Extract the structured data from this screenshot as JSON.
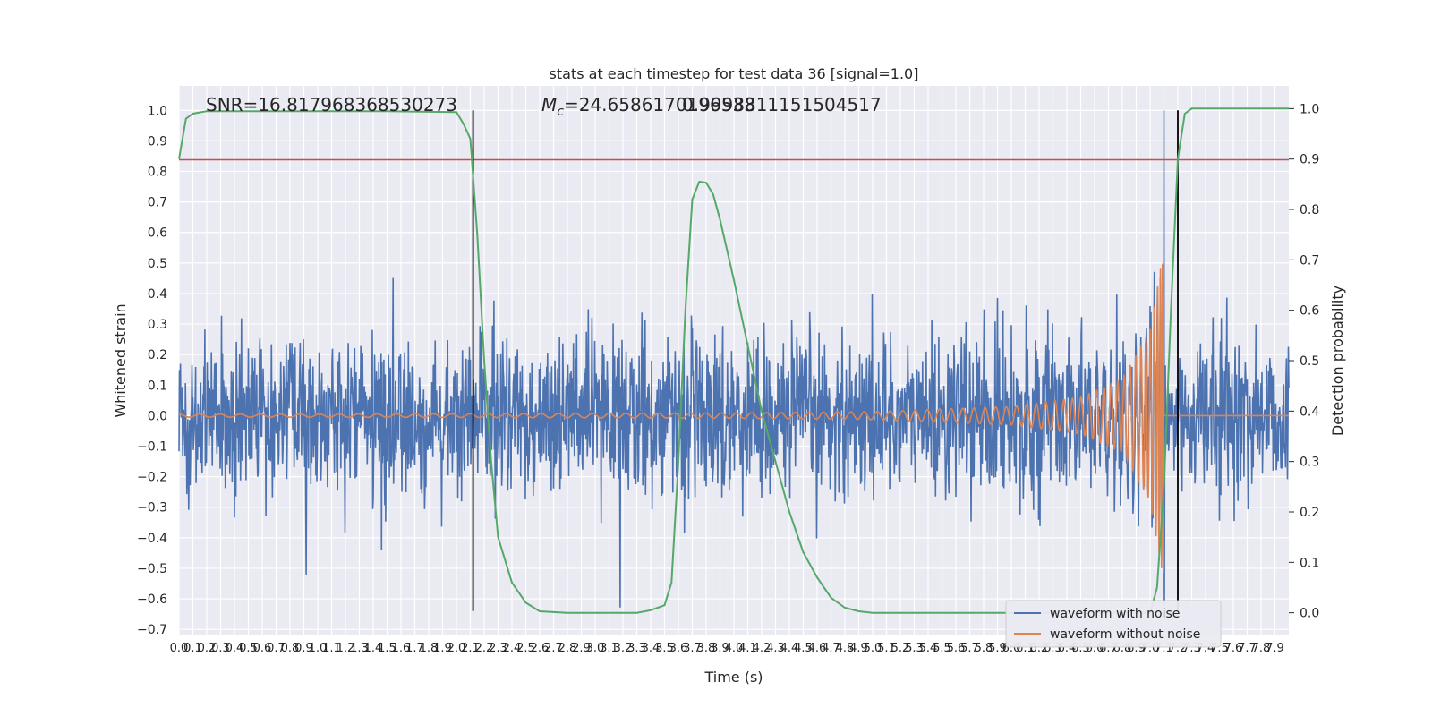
{
  "chart_data": {
    "type": "line",
    "title": "stats at each timestep for test data 36 [signal=1.0]",
    "xlabel": "Time (s)",
    "ylabel": "Whitened strain",
    "ylabel_right": "Detection probability",
    "xlim": [
      0.0,
      8.0
    ],
    "ylim": [
      -0.72,
      1.08
    ],
    "ylim_right": [
      -0.045,
      1.045
    ],
    "xticks": [
      0.0,
      0.1,
      0.2,
      0.3,
      0.4,
      0.5,
      0.6,
      0.7,
      0.8,
      0.9,
      1.0,
      1.1,
      1.2,
      1.3,
      1.4,
      1.5,
      1.6,
      1.7,
      1.8,
      1.9,
      2.0,
      2.1,
      2.2,
      2.3,
      2.4,
      2.5,
      2.6,
      2.7,
      2.8,
      2.9,
      3.0,
      3.1,
      3.2,
      3.3,
      3.4,
      3.5,
      3.6,
      3.7,
      3.8,
      3.9,
      4.0,
      4.1,
      4.2,
      4.3,
      4.4,
      4.5,
      4.6,
      4.7,
      4.8,
      4.9,
      5.0,
      5.1,
      5.2,
      5.3,
      5.4,
      5.5,
      5.6,
      5.7,
      5.8,
      5.9,
      6.0,
      6.1,
      6.2,
      6.3,
      6.4,
      6.5,
      6.6,
      6.7,
      6.8,
      6.9,
      7.0,
      7.1,
      7.2,
      7.3,
      7.4,
      7.5,
      7.6,
      7.7,
      7.8,
      7.9
    ],
    "yticks": [
      -0.7,
      -0.6,
      -0.5,
      -0.4,
      -0.3,
      -0.2,
      -0.1,
      0.0,
      0.1,
      0.2,
      0.3,
      0.4,
      0.5,
      0.6,
      0.7,
      0.8,
      0.9,
      1.0
    ],
    "yticks_right": [
      0.0,
      0.1,
      0.2,
      0.3,
      0.4,
      0.5,
      0.6,
      0.7,
      0.8,
      0.9,
      1.0
    ],
    "grid": true,
    "legend_position": "bottom-right",
    "annotations": {
      "snr": "SNR=16.817968368530273",
      "mc_prefix": "M",
      "mc_sub": "c",
      "mc_value": "=24.6586170196533",
      "overlap": "0.9998811151504517"
    },
    "series": [
      {
        "name": "waveform with noise",
        "color": "#4c72b0",
        "noise_std": 0.13,
        "spike": {
          "x": 7.1,
          "peak": 1.0,
          "trough": -0.62
        }
      },
      {
        "name": "waveform without noise",
        "color": "#dd8452",
        "envelope": {
          "x": [
            0.0,
            2.0,
            4.0,
            5.0,
            6.0,
            6.5,
            6.8,
            7.0,
            7.1
          ],
          "y": [
            0.005,
            0.006,
            0.009,
            0.013,
            0.03,
            0.06,
            0.12,
            0.28,
            0.55
          ]
        },
        "merger_x": 7.1
      },
      {
        "name": "",
        "axis": "right",
        "color": "#55a868",
        "x": [
          0.0,
          0.05,
          0.1,
          0.2,
          0.5,
          1.0,
          1.5,
          2.0,
          2.05,
          2.1,
          2.15,
          2.2,
          2.25,
          2.3,
          2.4,
          2.5,
          2.6,
          2.8,
          3.0,
          3.3,
          3.4,
          3.5,
          3.55,
          3.6,
          3.65,
          3.7,
          3.75,
          3.8,
          3.85,
          3.9,
          4.0,
          4.1,
          4.2,
          4.4,
          4.5,
          4.6,
          4.7,
          4.8,
          4.9,
          5.0,
          6.0,
          6.9,
          7.0,
          7.05,
          7.1,
          7.15,
          7.2,
          7.25,
          7.3,
          7.4,
          8.0
        ],
        "y": [
          0.9,
          0.98,
          0.99,
          0.995,
          0.995,
          0.995,
          0.995,
          0.993,
          0.97,
          0.94,
          0.75,
          0.5,
          0.3,
          0.15,
          0.06,
          0.02,
          0.003,
          0.0,
          0.0,
          0.0,
          0.005,
          0.015,
          0.06,
          0.3,
          0.6,
          0.82,
          0.855,
          0.853,
          0.83,
          0.78,
          0.66,
          0.53,
          0.4,
          0.2,
          0.12,
          0.07,
          0.03,
          0.01,
          0.003,
          0.0,
          0.0,
          0.0,
          0.0,
          0.05,
          0.25,
          0.6,
          0.9,
          0.99,
          1.0,
          1.0,
          1.0
        ]
      }
    ],
    "hlines": [
      {
        "y": 0.838,
        "color": "#c44e52"
      }
    ],
    "vlines": [
      {
        "x": 2.12,
        "color": "#000000"
      },
      {
        "x": 7.2,
        "color": "#000000"
      }
    ]
  }
}
